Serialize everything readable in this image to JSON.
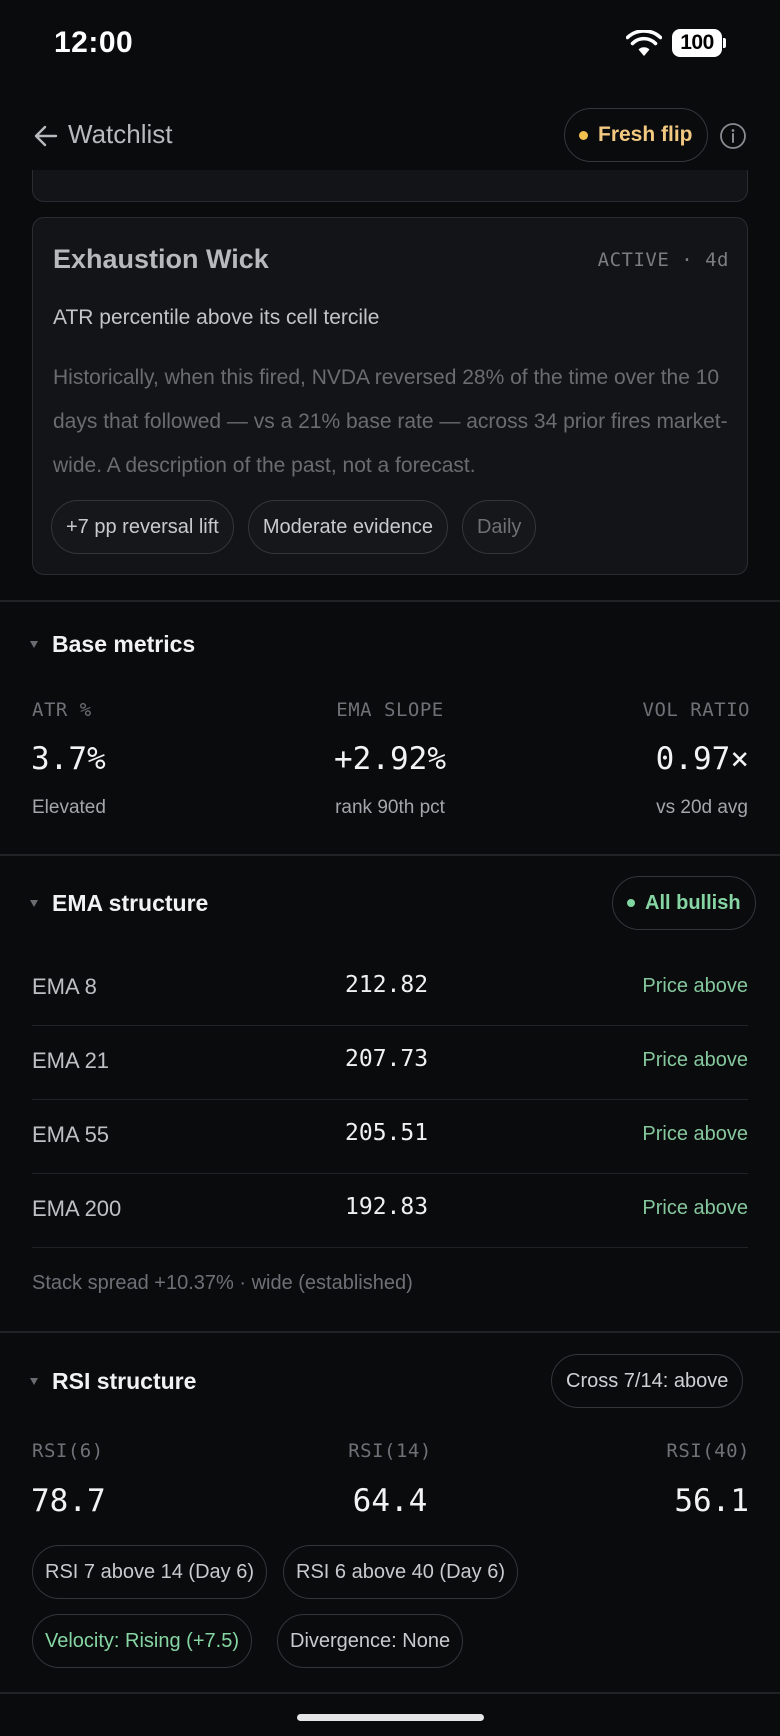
{
  "status_bar": {
    "time": "12:00",
    "battery": "100"
  },
  "header": {
    "back_label": "Watchlist",
    "badge_label": "Fresh flip"
  },
  "wick_card": {
    "title": "Exhaustion Wick",
    "status": "ACTIVE · 4d",
    "subtitle": "ATR percentile above its cell tercile",
    "description": "Historically, when this fired, NVDA reversed 28% of the time over the 10 days that followed — vs a 21% base rate — across 34 prior fires market-wide. A description of the past, not a forecast.",
    "chips": [
      "+7 pp reversal lift",
      "Moderate evidence",
      "Daily"
    ]
  },
  "base_metrics": {
    "title": "Base metrics",
    "items": [
      {
        "label": "ATR %",
        "value": "3.7%",
        "note": "Elevated"
      },
      {
        "label": "EMA SLOPE",
        "value": "+2.92%",
        "note": "rank 90th pct"
      },
      {
        "label": "VOL RATIO",
        "value": "0.97×",
        "note": "vs 20d avg"
      }
    ]
  },
  "ema_structure": {
    "title": "EMA structure",
    "badge": "All bullish",
    "rows": [
      {
        "name": "EMA 8",
        "value": "212.82",
        "status": "Price above"
      },
      {
        "name": "EMA 21",
        "value": "207.73",
        "status": "Price above"
      },
      {
        "name": "EMA 55",
        "value": "205.51",
        "status": "Price above"
      },
      {
        "name": "EMA 200",
        "value": "192.83",
        "status": "Price above"
      }
    ],
    "footer": "Stack spread +10.37% · wide (established)"
  },
  "rsi_structure": {
    "title": "RSI structure",
    "badge": "Cross 7/14: above",
    "items": [
      {
        "label": "RSI(6)",
        "value": "78.7"
      },
      {
        "label": "RSI(14)",
        "value": "64.4"
      },
      {
        "label": "RSI(40)",
        "value": "56.1"
      }
    ],
    "chips": [
      "RSI 7 above 14 (Day 6)",
      "RSI 6 above 40 (Day 6)",
      "Velocity: Rising (+7.5)",
      "Divergence: None"
    ]
  },
  "colors": {
    "accent_yellow": "#f2c14e",
    "bullish_green": "#86d6a4",
    "background": "#0a0b0d"
  }
}
